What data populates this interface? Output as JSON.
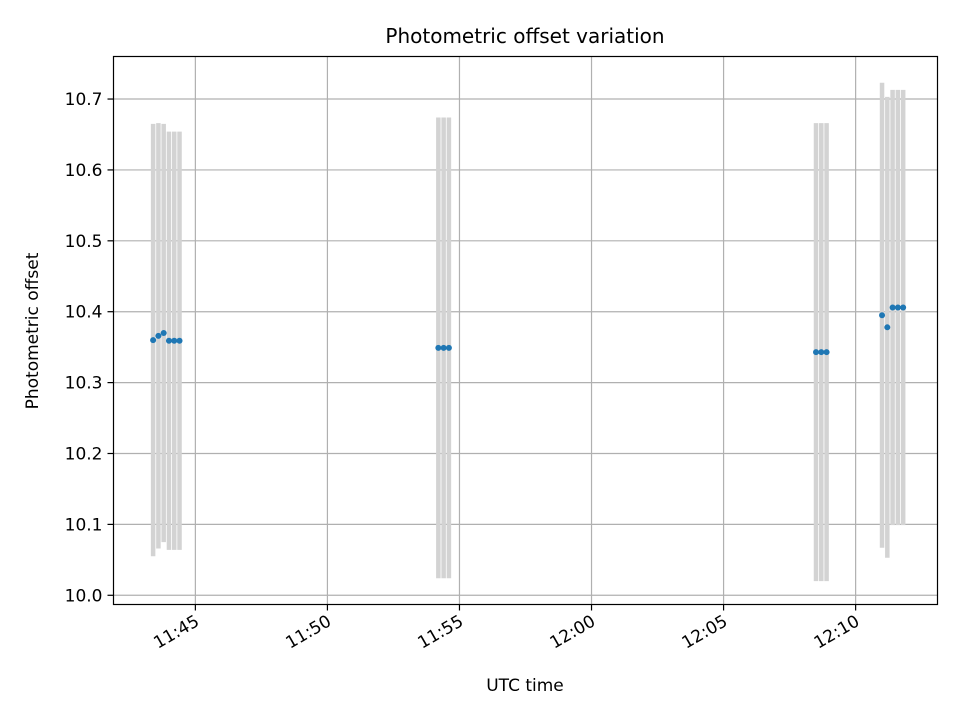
{
  "chart_data": {
    "type": "scatter",
    "title": "Photometric offset variation",
    "xlabel": "UTC time",
    "ylabel": "Photometric offset",
    "grid": true,
    "xlim": [
      "11:41:54",
      "12:13:06"
    ],
    "ylim": [
      9.987,
      10.76
    ],
    "x_ticks": [
      "11:45",
      "11:50",
      "11:55",
      "12:00",
      "12:05",
      "12:10"
    ],
    "y_ticks": [
      "10.0",
      "10.1",
      "10.2",
      "10.3",
      "10.4",
      "10.5",
      "10.6",
      "10.7"
    ],
    "colors": {
      "points": "#1f77b4",
      "errorbars": "#d3d3d3",
      "grid": "#b0b0b0"
    },
    "points": [
      {
        "x": "11:43:24",
        "y": 10.36,
        "err": 0.305
      },
      {
        "x": "11:43:36",
        "y": 10.366,
        "err": 0.3
      },
      {
        "x": "11:43:48",
        "y": 10.37,
        "err": 0.295
      },
      {
        "x": "11:44:00",
        "y": 10.359,
        "err": 0.295
      },
      {
        "x": "11:44:12",
        "y": 10.359,
        "err": 0.295
      },
      {
        "x": "11:44:24",
        "y": 10.359,
        "err": 0.295
      },
      {
        "x": "11:54:12",
        "y": 10.349,
        "err": 0.325
      },
      {
        "x": "11:54:24",
        "y": 10.349,
        "err": 0.325
      },
      {
        "x": "11:54:36",
        "y": 10.349,
        "err": 0.325
      },
      {
        "x": "12:08:30",
        "y": 10.343,
        "err": 0.323
      },
      {
        "x": "12:08:42",
        "y": 10.343,
        "err": 0.323
      },
      {
        "x": "12:08:54",
        "y": 10.343,
        "err": 0.323
      },
      {
        "x": "12:11:00",
        "y": 10.395,
        "err": 0.328
      },
      {
        "x": "12:11:12",
        "y": 10.378,
        "err": 0.325
      },
      {
        "x": "12:11:24",
        "y": 10.406,
        "err": 0.307
      },
      {
        "x": "12:11:36",
        "y": 10.406,
        "err": 0.307
      },
      {
        "x": "12:11:48",
        "y": 10.406,
        "err": 0.307
      }
    ]
  }
}
